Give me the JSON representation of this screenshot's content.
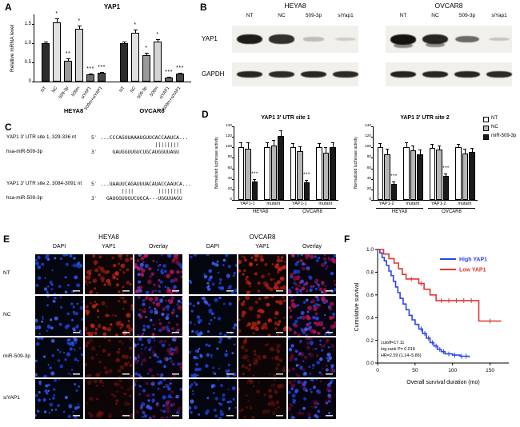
{
  "panels": {
    "a": {
      "label": "A"
    },
    "b": {
      "label": "B"
    },
    "c": {
      "label": "C"
    },
    "d": {
      "label": "D"
    },
    "e": {
      "label": "E"
    },
    "f": {
      "label": "F"
    }
  },
  "chart_data": [
    {
      "panel": "A",
      "type": "bar",
      "title": "YAP1",
      "ylabel": "Relative mRNA level",
      "ylim": [
        0,
        1.75
      ],
      "yticks": [
        0,
        0.5,
        1.0,
        1.5
      ],
      "categories": [
        "NT",
        "NC",
        "509-3p",
        "509m",
        "siYAP1",
        "509m+siYAP1"
      ],
      "bar_colors": [
        "#2b2b2b",
        "#e0e0e0",
        "#9a9a9a",
        "#d4d4d4",
        "#6e6e6e",
        "#454545"
      ],
      "groups": [
        {
          "name": "HEYA8",
          "values": [
            1.0,
            1.55,
            0.55,
            1.38,
            0.18,
            0.22
          ],
          "errors": [
            0.05,
            0.1,
            0.05,
            0.08,
            0.03,
            0.03
          ],
          "sig": [
            "",
            "*",
            "**",
            "*",
            "***",
            "***"
          ]
        },
        {
          "name": "OVCAR8",
          "values": [
            1.0,
            1.27,
            0.68,
            1.05,
            0.1,
            0.2
          ],
          "errors": [
            0.04,
            0.09,
            0.07,
            0.06,
            0.02,
            0.03
          ],
          "sig": [
            "",
            "*",
            "*",
            "*",
            "***",
            "***"
          ]
        }
      ]
    },
    {
      "panel": "D1",
      "type": "bar",
      "title": "YAP1 3′ UTR site 1",
      "ylabel": "Normalized luciferase activity",
      "ylim": [
        0,
        140
      ],
      "yticks": [
        0,
        20,
        40,
        60,
        80,
        100,
        120,
        140
      ],
      "categories": [
        "YAP1-1",
        "mutant",
        "YAP1-1",
        "mutant"
      ],
      "cell_line_spans": [
        {
          "name": "HEYA8",
          "from": 0,
          "to": 1
        },
        {
          "name": "OVCAR8",
          "from": 2,
          "to": 3
        }
      ],
      "series": [
        {
          "name": "NT",
          "color": "#ffffff",
          "values": [
            100,
            101,
            100,
            100
          ],
          "errors": [
            10,
            9,
            8,
            8
          ]
        },
        {
          "name": "NC",
          "color": "#b5b5b5",
          "values": [
            97,
            104,
            93,
            90
          ],
          "errors": [
            12,
            10,
            9,
            10
          ]
        },
        {
          "name": "miR-509-3p",
          "color": "#1a1a1a",
          "values": [
            35,
            121,
            34,
            100
          ],
          "errors": [
            5,
            12,
            4,
            9
          ]
        }
      ],
      "sig": [
        {
          "category": 0,
          "series": 2,
          "label": "***"
        },
        {
          "category": 2,
          "series": 2,
          "label": "***"
        }
      ],
      "legend": [
        "NT",
        "NC",
        "miR-509-3p"
      ]
    },
    {
      "panel": "D2",
      "type": "bar",
      "title": "YAP1 3′ UTR site 2",
      "ylabel": "Normalized luciferase activity",
      "ylim": [
        0,
        140
      ],
      "yticks": [
        0,
        20,
        40,
        60,
        80,
        100,
        120,
        140
      ],
      "categories": [
        "YAP1-2",
        "mutant",
        "YAP1-2",
        "mutant"
      ],
      "cell_line_spans": [
        {
          "name": "HEYA8",
          "from": 0,
          "to": 1
        },
        {
          "name": "OVCAR8",
          "from": 2,
          "to": 3
        }
      ],
      "series": [
        {
          "name": "NT",
          "color": "#ffffff",
          "values": [
            100,
            100,
            99,
            100
          ],
          "errors": [
            8,
            9,
            8,
            7
          ]
        },
        {
          "name": "NC",
          "color": "#b5b5b5",
          "values": [
            87,
            95,
            96,
            89
          ],
          "errors": [
            10,
            9,
            8,
            9
          ]
        },
        {
          "name": "miR-509-3p",
          "color": "#1a1a1a",
          "values": [
            30,
            86,
            45,
            91
          ],
          "errors": [
            5,
            10,
            5,
            8
          ]
        }
      ],
      "sig": [
        {
          "category": 0,
          "series": 2,
          "label": "***"
        },
        {
          "category": 2,
          "series": 2,
          "label": "***"
        }
      ],
      "legend": [
        "NT",
        "NC",
        "miR-509-3p"
      ]
    },
    {
      "panel": "F",
      "type": "line",
      "subtype": "kaplan-meier",
      "xlabel": "Overall survival duration (mo)",
      "ylabel": "Cumulative survival",
      "xlim": [
        0,
        175
      ],
      "xticks": [
        0,
        50,
        100,
        150
      ],
      "ylim": [
        0,
        1.0
      ],
      "yticks": [
        0.0,
        0.2,
        0.4,
        0.6,
        0.8,
        1.0
      ],
      "annotations": [
        "cutoff=17.11",
        "log-rank P= 0.018",
        "HR=2.59 (1.14–5.86)"
      ],
      "series": [
        {
          "name": "High YAP1",
          "color": "#2e45e6",
          "points": [
            [
              0,
              1.0
            ],
            [
              3,
              0.97
            ],
            [
              6,
              0.93
            ],
            [
              9,
              0.9
            ],
            [
              12,
              0.86
            ],
            [
              15,
              0.81
            ],
            [
              18,
              0.77
            ],
            [
              21,
              0.72
            ],
            [
              24,
              0.67
            ],
            [
              27,
              0.62
            ],
            [
              30,
              0.57
            ],
            [
              34,
              0.52
            ],
            [
              38,
              0.47
            ],
            [
              42,
              0.42
            ],
            [
              46,
              0.38
            ],
            [
              50,
              0.34
            ],
            [
              55,
              0.3
            ],
            [
              60,
              0.26
            ],
            [
              65,
              0.22
            ],
            [
              70,
              0.18
            ],
            [
              75,
              0.15
            ],
            [
              80,
              0.12
            ],
            [
              85,
              0.1
            ],
            [
              90,
              0.08
            ],
            [
              100,
              0.07
            ],
            [
              110,
              0.06
            ],
            [
              122,
              0.05
            ]
          ],
          "censors": [
            58,
            63,
            68,
            73,
            78,
            83,
            88,
            95,
            103,
            112,
            118
          ]
        },
        {
          "name": "Low YAP1",
          "color": "#e23535",
          "points": [
            [
              0,
              1.0
            ],
            [
              8,
              0.96
            ],
            [
              15,
              0.92
            ],
            [
              22,
              0.88
            ],
            [
              28,
              0.83
            ],
            [
              33,
              0.78
            ],
            [
              38,
              0.74
            ],
            [
              48,
              0.74
            ],
            [
              55,
              0.7
            ],
            [
              62,
              0.65
            ],
            [
              70,
              0.6
            ],
            [
              78,
              0.55
            ],
            [
              135,
              0.37
            ],
            [
              165,
              0.37
            ]
          ],
          "censors": [
            45,
            58,
            85,
            95,
            105,
            115,
            125,
            150
          ]
        }
      ]
    }
  ],
  "panel_b": {
    "cell_lines": [
      "HEYA8",
      "OVCAR8"
    ],
    "lanes": [
      "NT",
      "NC",
      "509-3p",
      "siYap1"
    ],
    "targets": [
      "YAP1",
      "GAPDH"
    ],
    "bands": {
      "YAP1": [
        [
          0.95,
          0.85,
          0.12,
          0.04
        ],
        [
          1.0,
          0.9,
          0.55,
          0.08
        ]
      ],
      "GAPDH": [
        [
          0.9,
          0.88,
          0.9,
          0.88
        ],
        [
          0.92,
          0.9,
          0.9,
          0.88
        ]
      ]
    }
  },
  "panel_c": {
    "alignments": [
      {
        "site_label": "YAP1 3′ UTR site 1, 329-336 nt",
        "mir_label": "hsa-miR-509-3p",
        "lines": [
          "5′ ...CCCAGUUAAAUGUUCACCAAUCA...",
          "                     ||||||||",
          "3′     GAUGGUUGUCUGCAUGGUUAGU"
        ]
      },
      {
        "site_label": "YAP1 3′ UTR site 2, 3084-3091 nt",
        "mir_label": "hsa-miR-509-3p",
        "lines": [
          "5′ ...UAAUUCAGAUUUACAUACCAAUCA...",
          "          ||||        ||||||||",
          "3′   GAUGGUUGUCUGCA---UGGUUAGU"
        ]
      }
    ]
  },
  "panel_e": {
    "cell_lines": [
      "HEYA8",
      "OVCAR8"
    ],
    "columns": [
      "DAPI",
      "YAP1",
      "Overlay"
    ],
    "rows": [
      "NT",
      "NC",
      "miR-509-3p",
      "siYAP1"
    ]
  }
}
